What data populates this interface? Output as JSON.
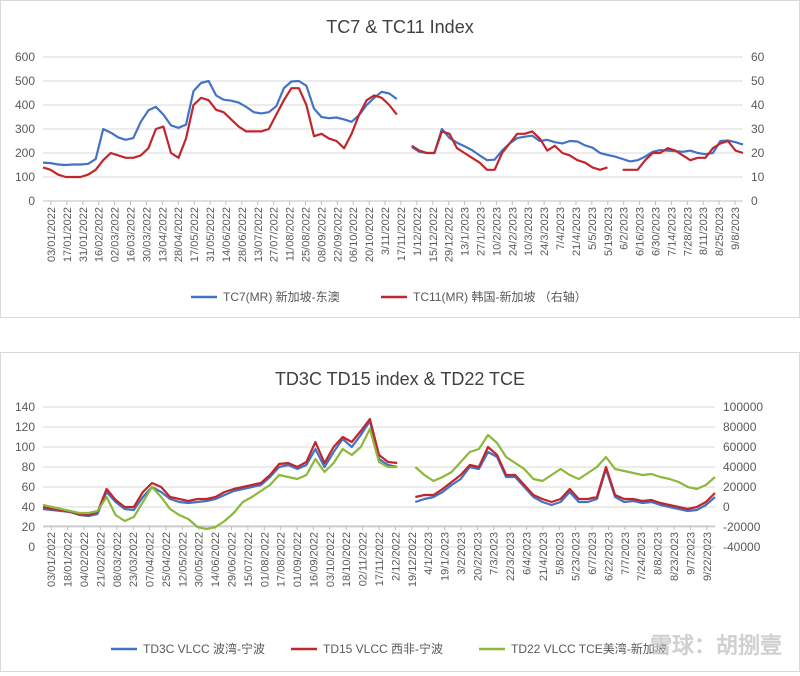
{
  "watermark": "雪球：胡捌壹",
  "chart_data": [
    {
      "type": "line",
      "title": "TC7 & TC11 Index",
      "x_labels": [
        "03/01/2022",
        "17/01/2022",
        "31/01/2022",
        "16/02/2022",
        "02/03/2022",
        "16/03/2022",
        "30/03/2022",
        "13/04/2022",
        "28/04/2022",
        "17/05/2022",
        "31/05/2022",
        "14/06/2022",
        "28/06/2022",
        "13/07/2022",
        "27/07/2022",
        "11/08/2022",
        "25/08/2022",
        "08/09/2022",
        "22/09/2022",
        "06/10/2022",
        "20/10/2022",
        "3/11/2022",
        "17/11/2022",
        "1/12/2022",
        "15/12/2022",
        "29/12/2022",
        "13/1/2023",
        "27/1/2023",
        "10/2/2023",
        "24/2/2023",
        "10/3/2023",
        "24/3/2023",
        "7/4/2023",
        "21/4/2023",
        "5/5/2023",
        "5/19/2023",
        "6/2/2023",
        "6/16/2023",
        "6/30/2023",
        "7/14/2023",
        "7/28/2023",
        "8/11/2023",
        "8/25/2023",
        "9/8/2023"
      ],
      "y_left_ticks": [
        "0",
        "100",
        "200",
        "300",
        "400",
        "500",
        "600"
      ],
      "y_right_ticks": [
        "0",
        "10",
        "20",
        "30",
        "40",
        "50",
        "60"
      ],
      "ylim_left": [
        0,
        600
      ],
      "ylim_right": [
        0,
        60
      ],
      "legend_position": "bottom",
      "series": [
        {
          "name": "TC7(MR) 新加坡-东澳",
          "color": "#4472c4",
          "axis": "left",
          "values": [
            160,
            158,
            152,
            150,
            152,
            152,
            155,
            175,
            300,
            285,
            265,
            255,
            262,
            330,
            378,
            392,
            360,
            315,
            305,
            318,
            458,
            492,
            500,
            440,
            422,
            418,
            410,
            392,
            370,
            365,
            370,
            395,
            470,
            498,
            500,
            480,
            385,
            350,
            345,
            348,
            340,
            330,
            358,
            400,
            430,
            455,
            448,
            425,
            null,
            225,
            205,
            200,
            200,
            300,
            262,
            243,
            228,
            212,
            190,
            170,
            172,
            210,
            240,
            262,
            268,
            272,
            250,
            255,
            245,
            240,
            250,
            248,
            232,
            222,
            200,
            192,
            185,
            175,
            165,
            170,
            185,
            205,
            212,
            210,
            208,
            205,
            210,
            200,
            195,
            200,
            250,
            252,
            245,
            235
          ]
        },
        {
          "name": "TC11(MR) 韩国-新加坡 （右轴）",
          "color": "#c0272d",
          "axis": "right",
          "values": [
            14,
            13,
            11,
            10,
            10,
            10,
            11,
            13,
            17,
            20,
            19,
            18,
            18,
            19,
            22,
            30,
            31,
            20,
            18,
            26,
            40,
            43,
            42,
            38,
            37,
            34,
            31,
            29,
            29,
            29,
            30,
            36,
            42,
            47,
            47,
            40,
            27,
            28,
            26,
            25,
            22,
            28,
            36,
            42,
            44,
            43,
            40,
            36,
            null,
            23,
            21,
            20,
            20,
            29,
            28,
            22,
            20,
            18,
            16,
            13,
            13,
            20,
            24,
            28,
            28,
            29,
            26,
            21,
            23,
            20,
            19,
            17,
            16,
            14,
            13,
            14,
            null,
            13,
            13,
            13,
            17,
            20,
            20,
            22,
            21,
            19,
            17,
            18,
            18,
            22,
            24,
            25,
            21,
            20
          ]
        }
      ]
    },
    {
      "type": "line",
      "title": "TD3C TD15 index & TD22 TCE",
      "x_labels": [
        "03/01/2022",
        "18/01/2022",
        "04/02/2022",
        "21/02/2022",
        "08/03/2022",
        "23/03/2022",
        "07/04/2022",
        "25/04/2022",
        "12/05/2022",
        "30/05/2022",
        "14/06/2022",
        "29/06/2022",
        "15/07/2022",
        "01/08/2022",
        "17/08/2022",
        "01/09/2022",
        "16/09/2022",
        "03/10/2022",
        "18/10/2022",
        "02/11/2022",
        "17/11/2022",
        "2/12/2022",
        "19/12/2022",
        "4/1/2023",
        "19/1/2023",
        "3/2/2023",
        "20/2/2023",
        "7/3/2023",
        "22/3/2023",
        "6/4/2023",
        "21/4/2023",
        "5/8/2023",
        "5/23/2023",
        "6/7/2023",
        "6/22/2023",
        "7/7/2023",
        "7/24/2023",
        "8/8/2023",
        "8/23/2023",
        "9/7/2023",
        "9/22/2023"
      ],
      "y_left_ticks": [
        "0",
        "20",
        "40",
        "60",
        "80",
        "100",
        "120",
        "140"
      ],
      "y_right_ticks": [
        "-40000",
        "-20000",
        "0",
        "20000",
        "40000",
        "60000",
        "80000",
        "100000"
      ],
      "ylim_left": [
        0,
        140
      ],
      "ylim_right": [
        -40000,
        100000
      ],
      "legend_position": "bottom",
      "series": [
        {
          "name": "TD3C VLCC 波湾-宁波",
          "color": "#4472c4",
          "axis": "left",
          "values": [
            38,
            37,
            36,
            35,
            32,
            31,
            33,
            55,
            45,
            38,
            37,
            50,
            60,
            55,
            48,
            45,
            44,
            45,
            46,
            48,
            52,
            56,
            58,
            60,
            62,
            70,
            80,
            82,
            78,
            82,
            98,
            80,
            95,
            108,
            100,
            112,
            126,
            88,
            82,
            80,
            null,
            45,
            48,
            50,
            55,
            62,
            68,
            80,
            78,
            95,
            90,
            70,
            70,
            60,
            50,
            45,
            42,
            45,
            55,
            45,
            45,
            48,
            78,
            50,
            45,
            46,
            44,
            45,
            42,
            40,
            38,
            36,
            37,
            42,
            50
          ]
        },
        {
          "name": "TD15 VLCC 西非-宁波",
          "color": "#c0272d",
          "axis": "left",
          "values": [
            40,
            38,
            37,
            35,
            33,
            32,
            35,
            58,
            47,
            40,
            40,
            55,
            64,
            60,
            50,
            48,
            46,
            48,
            48,
            50,
            55,
            58,
            60,
            62,
            64,
            72,
            83,
            84,
            80,
            85,
            105,
            84,
            100,
            110,
            105,
            116,
            128,
            92,
            85,
            84,
            null,
            50,
            52,
            52,
            58,
            65,
            72,
            82,
            80,
            100,
            92,
            72,
            72,
            62,
            52,
            48,
            45,
            48,
            58,
            48,
            48,
            50,
            80,
            52,
            48,
            48,
            46,
            47,
            44,
            42,
            40,
            38,
            40,
            45,
            54
          ]
        },
        {
          "name": "TD22 VLCC TCE美湾-新加坡",
          "color": "#8cb83c",
          "axis": "right",
          "values": [
            2000,
            0,
            -2000,
            -4000,
            -6000,
            -6000,
            -4000,
            10000,
            -8000,
            -14000,
            -10000,
            5000,
            20000,
            10000,
            -2000,
            -8000,
            -12000,
            -20000,
            -22000,
            -20000,
            -14000,
            -6000,
            5000,
            10000,
            16000,
            22000,
            32000,
            30000,
            28000,
            32000,
            48000,
            35000,
            44000,
            58000,
            52000,
            60000,
            78000,
            45000,
            40000,
            40000,
            null,
            40000,
            32000,
            26000,
            30000,
            35000,
            45000,
            55000,
            58000,
            72000,
            64000,
            50000,
            44000,
            38000,
            28000,
            26000,
            32000,
            38000,
            32000,
            28000,
            34000,
            40000,
            50000,
            38000,
            36000,
            34000,
            32000,
            33000,
            30000,
            28000,
            25000,
            20000,
            18000,
            22000,
            30000
          ]
        }
      ]
    }
  ]
}
